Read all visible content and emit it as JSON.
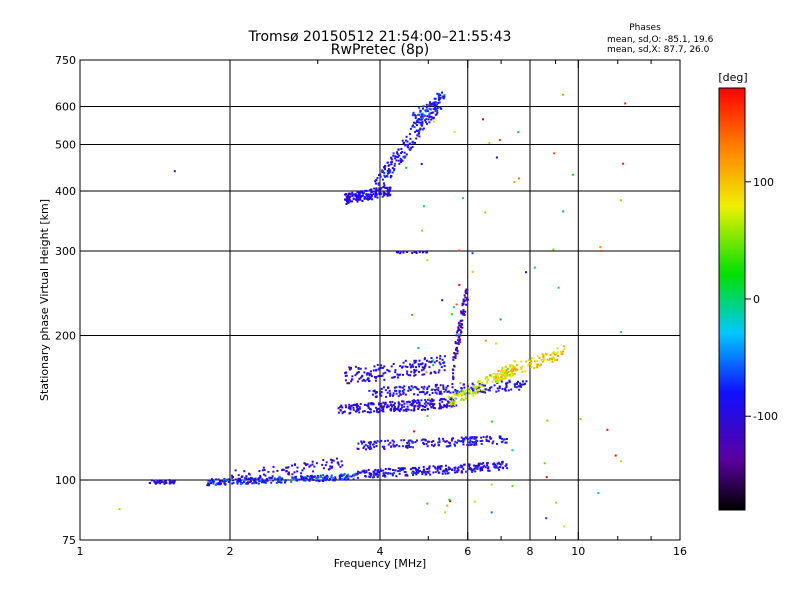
{
  "header": {
    "title_line1": "Tromsø 20150512 21:54:00–21:55:43",
    "title_line2": "RwPretec (8p)",
    "stats_title": "Phases",
    "stats_line1": "mean, sd,O: -85.1, 19.6",
    "stats_line2": "mean, sd,X:  87.7, 26.0"
  },
  "chart_data": {
    "type": "scatter",
    "title": "Tromsø 20150512 21:54:00–21:55:43",
    "subtitle": "RwPretec (8p)",
    "xlabel": "Frequency [MHz]",
    "ylabel": "Stationary phase Virtual Height [km]",
    "xscale": "log",
    "yscale": "log",
    "xlim": [
      1,
      16
    ],
    "ylim": [
      75,
      750
    ],
    "x_ticks": [
      1,
      2,
      4,
      6,
      8,
      10,
      16
    ],
    "x_minor_ticks": [
      3,
      5,
      7,
      9,
      12,
      14
    ],
    "y_ticks": [
      75,
      100,
      200,
      300,
      400,
      500,
      600,
      750
    ],
    "grid_x": [
      2,
      4,
      6,
      8,
      10
    ],
    "grid_y": [
      100,
      200,
      300,
      400,
      500,
      600
    ],
    "grid": true,
    "colorbar": {
      "label": "[deg]",
      "ticks": [
        100,
        0,
        -100
      ],
      "range": [
        -180,
        180
      ],
      "colormap": "rainbow (black-purple-blue-cyan-green-yellow-red)"
    },
    "series": [
      {
        "trace": "E-region trace",
        "freq_range_mhz": [
          1.3,
          7.2
        ],
        "height_km": [
          96,
          110
        ],
        "phase_deg": -100
      },
      {
        "trace": "Lower F trace",
        "freq_range_mhz": [
          3.6,
          7.2
        ],
        "height_km": [
          117,
          125
        ],
        "phase_deg": -90
      },
      {
        "trace": "F trace (150 km)",
        "freq_range_mhz": [
          3.3,
          7.9
        ],
        "height_km": [
          142,
          165
        ],
        "phase_deg": -95
      },
      {
        "trace": "F trace cusp",
        "freq_range_mhz": [
          5.5,
          6.0
        ],
        "height_km": [
          160,
          260
        ],
        "phase_deg": -110
      },
      {
        "trace": "F trace X-mode",
        "freq_range_mhz": [
          5.5,
          9.5
        ],
        "height_km": [
          145,
          200
        ],
        "phase_deg": 90
      },
      {
        "trace": "Upper F trace",
        "freq_range_mhz": [
          3.4,
          5.5
        ],
        "height_km": [
          380,
          640
        ],
        "phase_deg": -85
      },
      {
        "trace": "Isolated 300 km points",
        "freq_range_mhz": [
          4.3,
          5.0
        ],
        "height_km": [
          296,
          302
        ],
        "phase_deg": -100
      }
    ]
  }
}
